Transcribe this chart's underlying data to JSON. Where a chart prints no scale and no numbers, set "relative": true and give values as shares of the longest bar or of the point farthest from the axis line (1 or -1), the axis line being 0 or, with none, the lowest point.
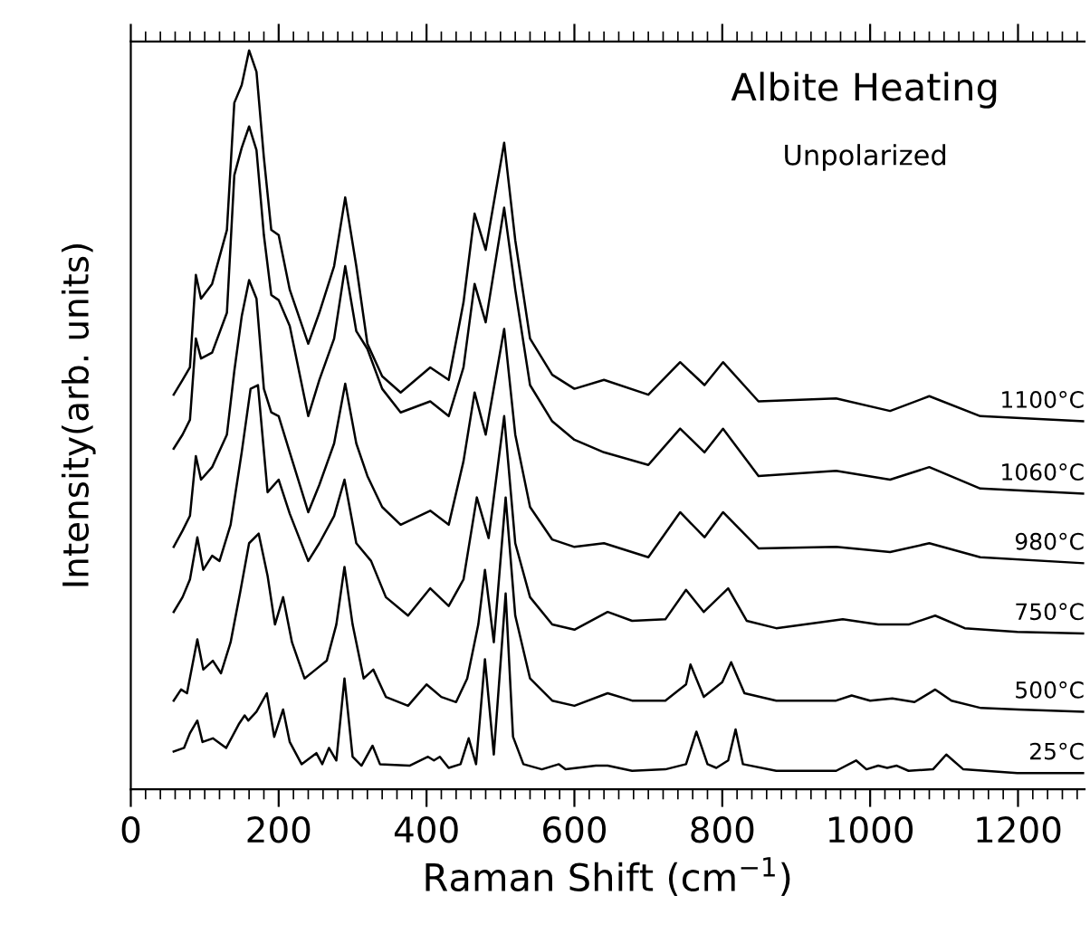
{
  "chart_data": {
    "type": "line",
    "title": "Albite Heating",
    "subtitle": "Unpolarized",
    "xlabel": "Raman Shift (cm$^{−1}$)",
    "ylabel": "Intensity(arb. units)",
    "relative": true,
    "xlim": [
      0,
      1290
    ],
    "xticks": [
      0,
      {
        "value": 20,
        "label": null
      },
      {
        "value": 40,
        "label": null
      },
      {
        "value": 60,
        "label": null
      },
      {
        "value": 80,
        "label": null
      },
      {
        "value": 100,
        "label": null
      },
      {
        "value": 120,
        "label": null
      },
      {
        "value": 140,
        "label": null
      },
      {
        "value": 160,
        "label": null
      },
      {
        "value": 180,
        "label": null
      },
      200,
      {
        "value": 220,
        "label": null
      },
      {
        "value": 240,
        "label": null
      },
      {
        "value": 260,
        "label": null
      },
      {
        "value": 280,
        "label": null
      },
      {
        "value": 300,
        "label": null
      },
      {
        "value": 320,
        "label": null
      },
      {
        "value": 340,
        "label": null
      },
      {
        "value": 360,
        "label": null
      },
      {
        "value": 380,
        "label": null
      },
      400,
      {
        "value": 420,
        "label": null
      },
      {
        "value": 440,
        "label": null
      },
      {
        "value": 460,
        "label": null
      },
      {
        "value": 480,
        "label": null
      },
      {
        "value": 500,
        "label": null
      },
      {
        "value": 520,
        "label": null
      },
      {
        "value": 540,
        "label": null
      },
      {
        "value": 560,
        "label": null
      },
      {
        "value": 580,
        "label": null
      },
      600,
      {
        "value": 620,
        "label": null
      },
      {
        "value": 640,
        "label": null
      },
      {
        "value": 660,
        "label": null
      },
      {
        "value": 680,
        "label": null
      },
      {
        "value": 700,
        "label": null
      },
      {
        "value": 720,
        "label": null
      },
      {
        "value": 740,
        "label": null
      },
      {
        "value": 760,
        "label": null
      },
      {
        "value": 780,
        "label": null
      },
      800,
      {
        "value": 820,
        "label": null
      },
      {
        "value": 840,
        "label": null
      },
      {
        "value": 860,
        "label": null
      },
      {
        "value": 880,
        "label": null
      },
      {
        "value": 900,
        "label": null
      },
      {
        "value": 920,
        "label": null
      },
      {
        "value": 940,
        "label": null
      },
      {
        "value": 960,
        "label": null
      },
      {
        "value": 980,
        "label": null
      },
      1000,
      {
        "value": 1020,
        "label": null
      },
      {
        "value": 1040,
        "label": null
      },
      {
        "value": 1060,
        "label": null
      },
      {
        "value": 1080,
        "label": null
      },
      {
        "value": 1100,
        "label": null
      },
      {
        "value": 1120,
        "label": null
      },
      {
        "value": 1140,
        "label": null
      },
      {
        "value": 1160,
        "label": null
      },
      {
        "value": 1180,
        "label": null
      },
      1200,
      {
        "value": 1220,
        "label": null
      },
      {
        "value": 1240,
        "label": null
      },
      {
        "value": 1260,
        "label": null
      },
      {
        "value": 1280,
        "label": null
      }
    ],
    "x": [
      58,
      70,
      80,
      88,
      95,
      110,
      130,
      140,
      150,
      160,
      170,
      180,
      190,
      200,
      215,
      240,
      255,
      275,
      290,
      305,
      320,
      340,
      365,
      405,
      430,
      450,
      465,
      480,
      505,
      520,
      540,
      570,
      600,
      640,
      700,
      743,
      776,
      801,
      849,
      954,
      1027,
      1080,
      1149,
      1288
    ],
    "series": [
      {
        "name": "1100°C",
        "color": "#000000",
        "values": [
          0.534,
          0.554,
          0.571,
          0.696,
          0.664,
          0.684,
          0.757,
          0.929,
          0.953,
          1.0,
          0.971,
          0.855,
          0.757,
          0.75,
          0.676,
          0.603,
          0.645,
          0.708,
          0.801,
          0.708,
          0.603,
          0.559,
          0.537,
          0.571,
          0.554,
          0.659,
          0.779,
          0.73,
          0.875,
          0.743,
          0.61,
          0.561,
          0.542,
          0.554,
          0.534,
          0.578,
          0.547,
          0.578,
          0.525,
          0.529,
          0.512,
          0.532,
          0.505,
          0.498
        ]
      },
      {
        "name": "1060°C",
        "color": "#000000",
        "values": [
          0.461,
          0.48,
          0.5,
          0.61,
          0.583,
          0.591,
          0.645,
          0.831,
          0.868,
          0.897,
          0.865,
          0.75,
          0.669,
          0.662,
          0.627,
          0.505,
          0.554,
          0.61,
          0.708,
          0.62,
          0.596,
          0.542,
          0.51,
          0.525,
          0.505,
          0.571,
          0.684,
          0.632,
          0.787,
          0.676,
          0.547,
          0.498,
          0.473,
          0.456,
          0.439,
          0.488,
          0.456,
          0.488,
          0.424,
          0.431,
          0.419,
          0.436,
          0.407,
          0.4
        ]
      },
      {
        "name": "980°C",
        "color": "#000000",
        "values": [
          0.328,
          0.35,
          0.37,
          0.451,
          0.419,
          0.436,
          0.48,
          0.566,
          0.64,
          0.689,
          0.664,
          0.542,
          0.51,
          0.505,
          0.456,
          0.375,
          0.412,
          0.468,
          0.549,
          0.468,
          0.424,
          0.382,
          0.358,
          0.377,
          0.358,
          0.444,
          0.537,
          0.48,
          0.623,
          0.48,
          0.382,
          0.338,
          0.328,
          0.333,
          0.314,
          0.375,
          0.341,
          0.375,
          0.326,
          0.328,
          0.321,
          0.333,
          0.314,
          0.306
        ]
      },
      {
        "name": "750°C",
        "color": "#000000",
        "x": [
          58,
          70,
          80,
          90,
          98,
          110,
          120,
          135,
          150,
          162,
          172,
          185,
          200,
          215,
          240,
          255,
          275,
          289,
          305,
          325,
          345,
          375,
          405,
          430,
          450,
          468,
          484,
          505,
          520,
          540,
          570,
          600,
          645,
          678,
          723,
          751,
          775,
          808,
          833,
          873,
          963,
          1011,
          1052,
          1088,
          1128,
          1199,
          1288
        ],
        "values": [
          0.24,
          0.26,
          0.284,
          0.341,
          0.297,
          0.316,
          0.309,
          0.358,
          0.456,
          0.542,
          0.547,
          0.402,
          0.419,
          0.373,
          0.309,
          0.333,
          0.37,
          0.419,
          0.333,
          0.309,
          0.26,
          0.235,
          0.272,
          0.248,
          0.284,
          0.395,
          0.34,
          0.505,
          0.333,
          0.26,
          0.223,
          0.216,
          0.24,
          0.228,
          0.23,
          0.27,
          0.24,
          0.272,
          0.228,
          0.218,
          0.23,
          0.223,
          0.223,
          0.235,
          0.218,
          0.213,
          0.211
        ]
      },
      {
        "name": "500°C",
        "color": "#000000",
        "x": [
          58,
          68,
          76,
          90,
          98,
          111,
          122,
          135,
          148,
          160,
          173,
          185,
          195,
          206,
          218,
          235,
          250,
          265,
          278,
          289,
          300,
          315,
          328,
          345,
          375,
          400,
          420,
          440,
          455,
          470,
          479,
          491,
          507,
          520,
          540,
          570,
          600,
          645,
          678,
          723,
          751,
          757,
          775,
          800,
          812,
          830,
          873,
          954,
          975,
          1000,
          1030,
          1060,
          1088,
          1110,
          1150,
          1200,
          1288
        ],
        "values": [
          0.12,
          0.135,
          0.13,
          0.203,
          0.162,
          0.174,
          0.157,
          0.199,
          0.267,
          0.333,
          0.346,
          0.289,
          0.223,
          0.26,
          0.199,
          0.15,
          0.162,
          0.174,
          0.223,
          0.301,
          0.223,
          0.15,
          0.162,
          0.125,
          0.113,
          0.142,
          0.125,
          0.118,
          0.15,
          0.223,
          0.297,
          0.199,
          0.395,
          0.235,
          0.15,
          0.12,
          0.113,
          0.13,
          0.12,
          0.12,
          0.142,
          0.169,
          0.125,
          0.145,
          0.172,
          0.13,
          0.12,
          0.12,
          0.127,
          0.12,
          0.123,
          0.118,
          0.135,
          0.12,
          0.11,
          0.108,
          0.105
        ]
      },
      {
        "name": "25°C",
        "color": "#000000",
        "x": [
          58,
          72,
          80,
          90,
          97,
          111,
          129,
          146,
          154,
          159,
          170,
          184,
          194,
          206,
          215,
          231,
          251,
          259,
          268,
          278,
          289,
          300,
          312,
          327,
          337,
          377,
          402,
          410,
          418,
          430,
          446,
          457,
          467,
          479,
          491,
          507,
          517,
          531,
          556,
          579,
          588,
          629,
          645,
          678,
          723,
          751,
          765,
          780,
          792,
          808,
          818,
          828,
          873,
          954,
          981,
          995,
          1011,
          1023,
          1036,
          1052,
          1085,
          1103,
          1126,
          1199,
          1288
        ],
        "values": [
          0.051,
          0.056,
          0.076,
          0.093,
          0.064,
          0.069,
          0.056,
          0.088,
          0.1,
          0.093,
          0.105,
          0.13,
          0.071,
          0.108,
          0.064,
          0.034,
          0.049,
          0.034,
          0.056,
          0.039,
          0.15,
          0.044,
          0.032,
          0.059,
          0.034,
          0.032,
          0.044,
          0.039,
          0.044,
          0.029,
          0.034,
          0.069,
          0.034,
          0.176,
          0.047,
          0.265,
          0.071,
          0.034,
          0.027,
          0.034,
          0.027,
          0.032,
          0.032,
          0.025,
          0.027,
          0.034,
          0.078,
          0.034,
          0.029,
          0.039,
          0.081,
          0.034,
          0.025,
          0.025,
          0.039,
          0.027,
          0.032,
          0.029,
          0.032,
          0.025,
          0.027,
          0.047,
          0.027,
          0.022,
          0.022
        ]
      }
    ]
  }
}
